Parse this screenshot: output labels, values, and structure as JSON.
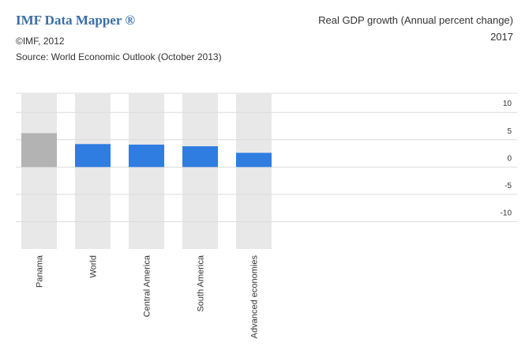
{
  "header": {
    "brand": "IMF Data Mapper ®",
    "copyright": "©IMF, 2012",
    "source": "Source: World Economic Outlook (October 2013)"
  },
  "chart_data": {
    "type": "bar",
    "title": "Real GDP growth (Annual percent change)",
    "subtitle": "2017",
    "categories": [
      "Panama",
      "World",
      "Central America",
      "South America",
      "Advanced economies"
    ],
    "values": [
      6.2,
      4.2,
      4.1,
      3.8,
      2.6
    ],
    "colors": [
      "#b3b3b3",
      "#2f7de1",
      "#2f7de1",
      "#2f7de1",
      "#2f7de1"
    ],
    "ylim": [
      -15,
      13.5
    ],
    "yticks": [
      10,
      5,
      0,
      -5,
      -10
    ],
    "grid": true
  }
}
